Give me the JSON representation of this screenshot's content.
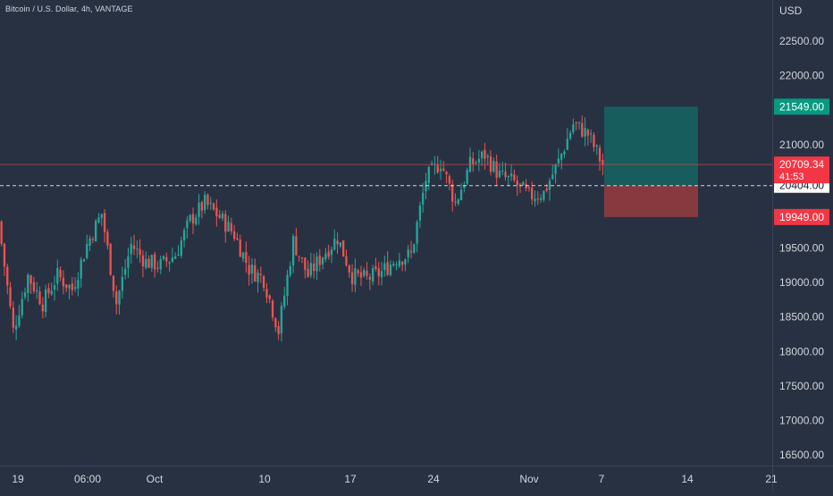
{
  "header": {
    "title": "Bitcoin / U.S. Dollar, 4h, VANTAGE",
    "currency": "USD"
  },
  "colors": {
    "background": "#283142",
    "axis_line": "#3a4456",
    "grid": "#2f3a4b",
    "up": "#26a69a",
    "down": "#ef5350",
    "tp_zone": "#16605f",
    "sl_zone": "#8c3a40",
    "tp_label": "#089981",
    "sl_label": "#f23645",
    "price_label": "#f23645",
    "current_line": "#b8474e",
    "entry_line": "#e6e9ef"
  },
  "chart_data": {
    "type": "candlestick",
    "title": "Bitcoin / U.S. Dollar, 4h, VANTAGE",
    "timeframe": "4h",
    "exchange": "VANTAGE",
    "y_axis": {
      "unit": "USD",
      "ylim": [
        16300,
        22900
      ],
      "ticks": [
        "22500.00",
        "22000.00",
        "21000.00",
        "19500.00",
        "19000.00",
        "18500.00",
        "18000.00",
        "17500.00",
        "17000.00",
        "16500.00"
      ],
      "tick_values": [
        22500,
        22000,
        21000,
        19500,
        19000,
        18500,
        18000,
        17500,
        17000,
        16500
      ]
    },
    "x_axis": {
      "labels": [
        "19",
        "06:00",
        "Oct",
        "10",
        "17",
        "24",
        "Nov",
        "7",
        "14",
        "21"
      ]
    },
    "anchors": [
      {
        "date": "19",
        "price": 19880
      },
      {
        "date": "",
        "price": 18300
      },
      {
        "date": "",
        "price": 19100
      },
      {
        "date": "",
        "price": 18700
      },
      {
        "date": "",
        "price": 19100
      },
      {
        "date": "06:00",
        "price": 18900
      },
      {
        "date": "",
        "price": 19550
      },
      {
        "date": "",
        "price": 20000
      },
      {
        "date": "",
        "price": 18700
      },
      {
        "date": "",
        "price": 19550
      },
      {
        "date": "Oct",
        "price": 19300
      },
      {
        "date": "",
        "price": 19250
      },
      {
        "date": "",
        "price": 19400
      },
      {
        "date": "",
        "price": 19900
      },
      {
        "date": "",
        "price": 20150
      },
      {
        "date": "",
        "price": 19950
      },
      {
        "date": "",
        "price": 19700
      },
      {
        "date": "10",
        "price": 19200
      },
      {
        "date": "",
        "price": 19050
      },
      {
        "date": "",
        "price": 18300
      },
      {
        "date": "",
        "price": 19600
      },
      {
        "date": "17",
        "price": 19100
      },
      {
        "date": "",
        "price": 19400
      },
      {
        "date": "",
        "price": 19650
      },
      {
        "date": "",
        "price": 19100
      },
      {
        "date": "",
        "price": 19050
      },
      {
        "date": "",
        "price": 19150
      },
      {
        "date": "24",
        "price": 19350
      },
      {
        "date": "",
        "price": 19400
      },
      {
        "date": "",
        "price": 20500
      },
      {
        "date": "",
        "price": 20750
      },
      {
        "date": "",
        "price": 20150
      },
      {
        "date": "",
        "price": 20700
      },
      {
        "date": "",
        "price": 20850
      },
      {
        "date": "",
        "price": 20550
      },
      {
        "date": "Nov",
        "price": 20450
      },
      {
        "date": "",
        "price": 20250
      },
      {
        "date": "",
        "price": 20300
      },
      {
        "date": "",
        "price": 20750
      },
      {
        "date": "",
        "price": 21300
      },
      {
        "date": "",
        "price": 21150
      },
      {
        "date": "",
        "price": 20709
      }
    ],
    "levels": {
      "last_price": 20709.34,
      "entry": 20404.0,
      "take_profit": 21549.0,
      "stop_loss": 19949.0
    },
    "labels": {
      "last_price": "20709.34",
      "countdown": "41:53",
      "entry": "20404.00",
      "take_profit": "21549.00",
      "stop_loss": "19949.00"
    },
    "grid": false
  }
}
